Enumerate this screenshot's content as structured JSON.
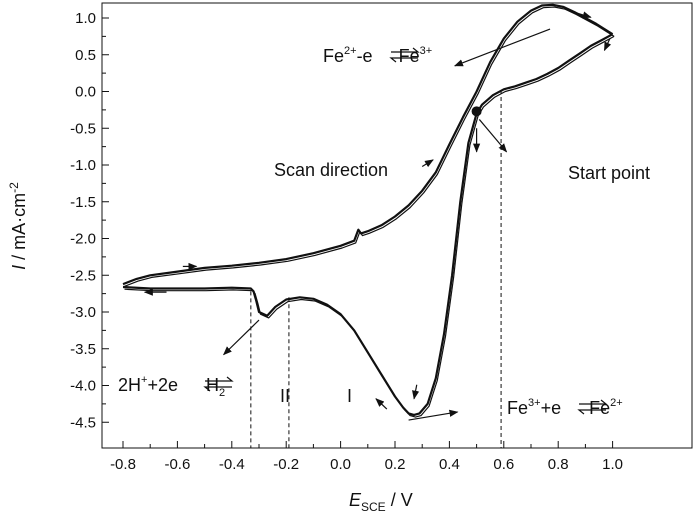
{
  "chart_data": {
    "type": "line",
    "title": "",
    "xlabel": {
      "main": "E",
      "sub": "SCE",
      "rest": " / V"
    },
    "ylabel": {
      "italic": "I",
      "rest": " / mA·cm",
      "sup": "-2"
    },
    "xlim": [
      -0.9,
      1.05
    ],
    "ylim": [
      -4.65,
      1.2
    ],
    "xticks": [
      -0.8,
      -0.6,
      -0.4,
      -0.2,
      0.0,
      0.2,
      0.4,
      0.6,
      0.8,
      1.0
    ],
    "xtick_labels": [
      "-0.8",
      "-0.6",
      "-0.4",
      "-0.2",
      "0.0",
      "0.2",
      "0.4",
      "0.6",
      "0.8",
      "1.0"
    ],
    "yticks": [
      1.0,
      0.5,
      0.0,
      -0.5,
      -1.0,
      -1.5,
      -2.0,
      -2.5,
      -3.0,
      -3.5,
      -4.0,
      -4.5
    ],
    "ytick_labels": [
      "1.0",
      "0.5",
      "0.0",
      "-0.5",
      "-1.0",
      "-1.5",
      "-2.0",
      "-2.5",
      "-3.0",
      "-3.5",
      "-4.0",
      "-4.5"
    ],
    "grid": false,
    "series": [
      {
        "x": [
          0.5,
          0.47,
          0.44,
          0.41,
          0.38,
          0.35,
          0.32,
          0.29,
          0.27,
          0.25,
          0.23,
          0.2,
          0.15,
          0.1,
          0.05,
          0.0,
          -0.05,
          -0.1,
          -0.15,
          -0.2,
          -0.24,
          -0.27,
          -0.3,
          -0.31,
          -0.32,
          -0.33,
          -0.4,
          -0.5,
          -0.6,
          -0.7,
          -0.8
        ],
        "y": [
          -0.3,
          -0.7,
          -1.5,
          -2.5,
          -3.3,
          -3.9,
          -4.25,
          -4.38,
          -4.4,
          -4.38,
          -4.3,
          -4.15,
          -3.85,
          -3.55,
          -3.25,
          -3.03,
          -2.9,
          -2.82,
          -2.8,
          -2.83,
          -2.93,
          -3.05,
          -3.0,
          -2.85,
          -2.72,
          -2.68,
          -2.67,
          -2.68,
          -2.68,
          -2.68,
          -2.66
        ]
      },
      {
        "x": [
          -0.8,
          -0.75,
          -0.7,
          -0.6,
          -0.5,
          -0.4,
          -0.3,
          -0.2,
          -0.1,
          0.0,
          0.05,
          0.065,
          0.075,
          0.1,
          0.15,
          0.2,
          0.25,
          0.3,
          0.35,
          0.4,
          0.45,
          0.5,
          0.55,
          0.6,
          0.65,
          0.7,
          0.74,
          0.78,
          0.82,
          0.86,
          0.9,
          0.94,
          0.97,
          1.0
        ],
        "y": [
          -2.62,
          -2.55,
          -2.5,
          -2.45,
          -2.4,
          -2.37,
          -2.33,
          -2.28,
          -2.2,
          -2.1,
          -2.03,
          -1.88,
          -1.93,
          -1.9,
          -1.82,
          -1.7,
          -1.55,
          -1.35,
          -1.1,
          -0.72,
          -0.35,
          0.0,
          0.4,
          0.72,
          0.95,
          1.1,
          1.17,
          1.18,
          1.15,
          1.08,
          1.0,
          0.92,
          0.85,
          0.78
        ]
      },
      {
        "x": [
          1.0,
          0.96,
          0.92,
          0.88,
          0.84,
          0.8,
          0.76,
          0.72,
          0.68,
          0.64,
          0.6,
          0.56,
          0.52,
          0.5
        ],
        "y": [
          0.78,
          0.7,
          0.62,
          0.52,
          0.42,
          0.32,
          0.24,
          0.17,
          0.12,
          0.07,
          0.03,
          -0.05,
          -0.18,
          -0.3
        ]
      }
    ],
    "start_point": {
      "x": 0.5,
      "y": -0.27
    },
    "annotations": {
      "fe_oxidation": {
        "a": "Fe",
        "a_sup": "2+",
        "b": "-e",
        "c": "Fe",
        "c_sup": "3+"
      },
      "fe_reduction": {
        "a": "Fe",
        "a_sup": "3+",
        "b": "+e",
        "c": "Fe",
        "c_sup": "2+"
      },
      "hydrogen": {
        "a": "2H",
        "a_sup": "+",
        "b": "+2e",
        "c": "H",
        "c_sub": "2"
      },
      "scan_direction": "Scan direction",
      "start_point": "Start point",
      "region_1": "I",
      "region_2": "II"
    },
    "vlines_x": [
      -0.33,
      -0.19,
      0.59
    ]
  }
}
